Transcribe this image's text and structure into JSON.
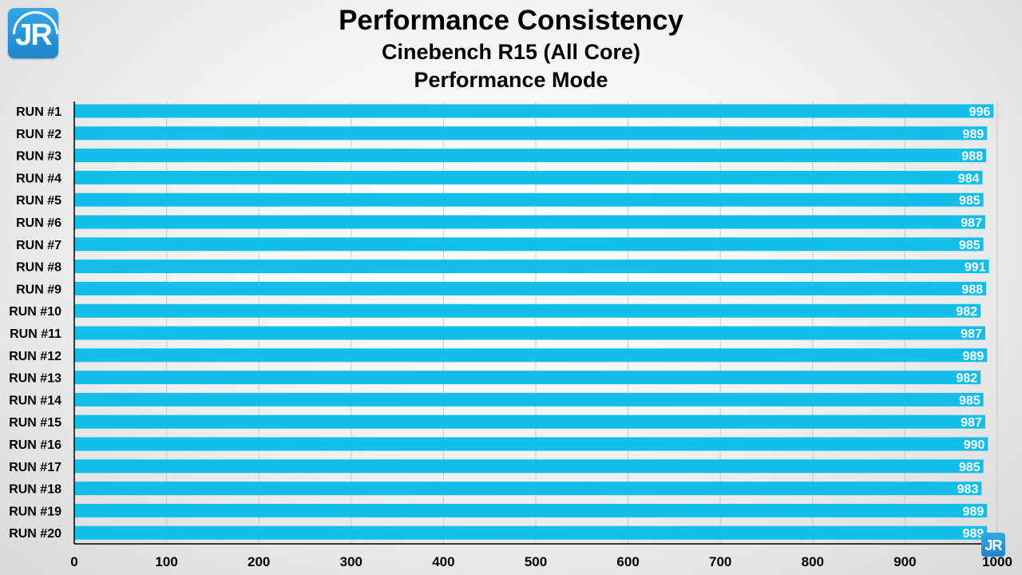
{
  "header": {
    "title": "Performance Consistency",
    "subtitle1": "Cinebench R15 (All Core)",
    "subtitle2": "Performance Mode"
  },
  "logo": {
    "text": "JR",
    "icon": "jr-logo-icon"
  },
  "colors": {
    "bar": "#13bfea",
    "bar_label": "#ffffff",
    "text": "#000000",
    "logo": "#2a97d8"
  },
  "chart_data": {
    "type": "bar",
    "orientation": "horizontal",
    "title": "Performance Consistency",
    "subtitle": "Cinebench R15 (All Core) Performance Mode",
    "categories": [
      "RUN #1",
      "RUN #2",
      "RUN #3",
      "RUN #4",
      "RUN #5",
      "RUN #6",
      "RUN #7",
      "RUN #8",
      "RUN #9",
      "RUN #10",
      "RUN #11",
      "RUN #12",
      "RUN #13",
      "RUN #14",
      "RUN #15",
      "RUN #16",
      "RUN #17",
      "RUN #18",
      "RUN #19",
      "RUN #20"
    ],
    "values": [
      996,
      989,
      988,
      984,
      985,
      987,
      985,
      991,
      988,
      982,
      987,
      989,
      982,
      985,
      987,
      990,
      985,
      983,
      989,
      989
    ],
    "xlim": [
      0,
      1000
    ],
    "xticks": [
      0,
      100,
      200,
      300,
      400,
      500,
      600,
      700,
      800,
      900,
      1000
    ],
    "xlabel": "",
    "ylabel": "",
    "grid": true,
    "data_labels": true,
    "legend": "none"
  }
}
